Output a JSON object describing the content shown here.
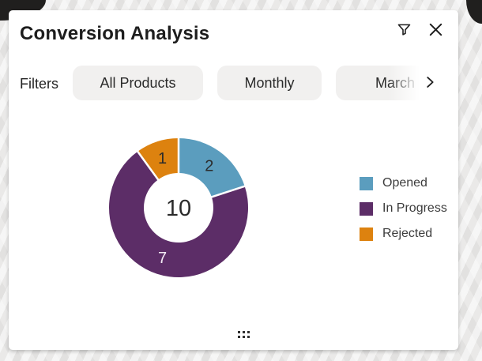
{
  "header": {
    "title": "Conversion Analysis"
  },
  "filters": {
    "label": "Filters",
    "chips": [
      {
        "label": "All Products"
      },
      {
        "label": "Monthly"
      },
      {
        "label": "March"
      }
    ]
  },
  "chart_data": {
    "type": "donut",
    "title": "Conversion Analysis",
    "center_total": "10",
    "total": 10,
    "start_angle_deg": 0,
    "direction": "clockwise",
    "legend_position": "right",
    "slices": [
      {
        "label": "Opened",
        "value": 2,
        "color": "#5B9DBE",
        "label_color": "#2b2b2b"
      },
      {
        "label": "In Progress",
        "value": 7,
        "color": "#5C2D67",
        "label_color": "#f2eaf4"
      },
      {
        "label": "Rejected",
        "value": 1,
        "color": "#DD820F",
        "label_color": "#2b2b2b"
      }
    ]
  },
  "colors": {
    "card_bg": "#ffffff",
    "page_bg": "#e9e8e7",
    "corner_blob": "#201f1e",
    "chip_bg": "#f1f0ef",
    "text_primary": "#1d1d1d"
  }
}
